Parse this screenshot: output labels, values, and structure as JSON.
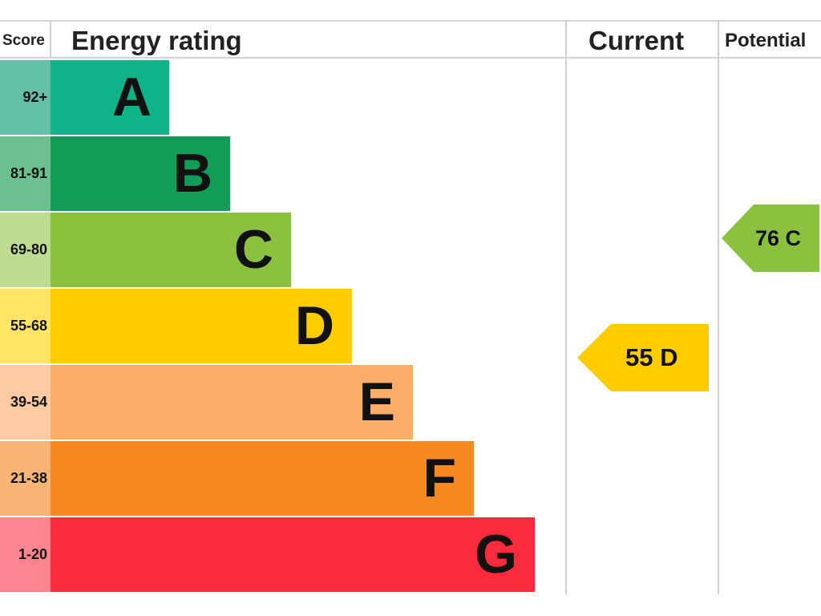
{
  "chart_data": {
    "type": "bar",
    "headers": {
      "score": "Score",
      "rating": "Energy rating",
      "current": "Current",
      "potential": "Potential"
    },
    "bands": [
      {
        "letter": "A",
        "range": "92+",
        "color": "#0fb387",
        "score_color": "#63bfa6"
      },
      {
        "letter": "B",
        "range": "81-91",
        "color": "#119c57",
        "score_color": "#6cbf8e"
      },
      {
        "letter": "C",
        "range": "69-80",
        "color": "#8cc13f",
        "score_color": "#bddc92"
      },
      {
        "letter": "D",
        "range": "55-68",
        "color": "#ffcc00",
        "score_color": "#ffe466"
      },
      {
        "letter": "E",
        "range": "39-54",
        "color": "#fcad67",
        "score_color": "#fdcaa2"
      },
      {
        "letter": "F",
        "range": "21-38",
        "color": "#f68a20",
        "score_color": "#f9b476"
      },
      {
        "letter": "G",
        "range": "1-20",
        "color": "#fb2a3c",
        "score_color": "#fd8590"
      }
    ],
    "current": {
      "value": 55,
      "band": "D",
      "label": "55 D",
      "color": "#ffcc00"
    },
    "potential": {
      "value": 76,
      "band": "C",
      "label": "76 C",
      "color": "#8cc13f"
    }
  }
}
